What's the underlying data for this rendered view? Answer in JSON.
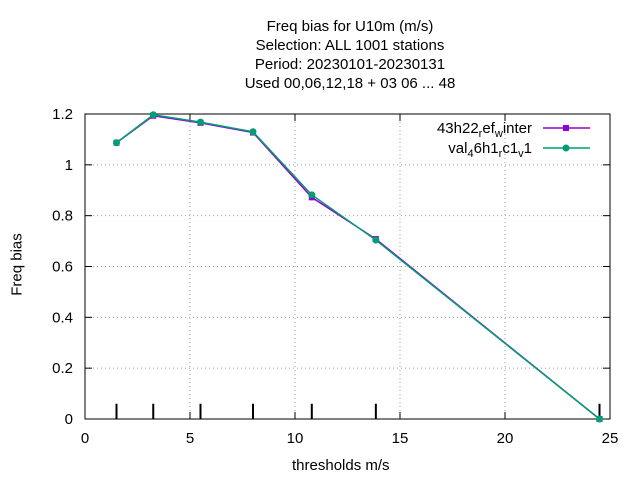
{
  "chart_data": {
    "type": "line",
    "title_lines": [
      "Freq bias  for U10m (m/s)",
      "Selection: ALL   1001 stations",
      "Period: 20230101-20230131",
      "Used  00,06,12,18  + 03 06 ... 48"
    ],
    "xlabel": "thresholds m/s",
    "ylabel": "Freq bias",
    "xlim": [
      0,
      25
    ],
    "ylim": [
      0,
      1.2
    ],
    "xticks": [
      "0",
      "5",
      "10",
      "15",
      "20",
      "25"
    ],
    "yticks": [
      "0",
      "0.2",
      "0.4",
      "0.6",
      "0.8",
      "1",
      "1.2"
    ],
    "grid": true,
    "legend_position": "top-right",
    "threshold_marks": [
      1.5,
      3.25,
      5.5,
      8.0,
      10.8,
      13.85,
      24.5
    ],
    "series": [
      {
        "legend_main": "43h22",
        "legend_parts": [
          {
            "text": "43h22",
            "sub": false
          },
          {
            "text": "r",
            "sub": true
          },
          {
            "text": "ef",
            "sub": false
          },
          {
            "text": "w",
            "sub": true
          },
          {
            "text": "inter",
            "sub": false
          }
        ],
        "color": "#9400d3",
        "x": [
          1.5,
          3.25,
          5.5,
          8.0,
          10.8,
          13.85,
          24.5
        ],
        "y": [
          1.087,
          1.193,
          1.165,
          1.127,
          0.872,
          0.708,
          0.0
        ]
      },
      {
        "legend_main": "val",
        "legend_parts": [
          {
            "text": "val",
            "sub": false
          },
          {
            "text": "4",
            "sub": true
          },
          {
            "text": "6h1",
            "sub": false
          },
          {
            "text": "r",
            "sub": true
          },
          {
            "text": "c1",
            "sub": false
          },
          {
            "text": "v",
            "sub": true
          },
          {
            "text": "1",
            "sub": false
          }
        ],
        "color": "#009e73",
        "x": [
          1.5,
          3.25,
          5.5,
          8.0,
          10.8,
          13.85,
          24.5
        ],
        "y": [
          1.087,
          1.197,
          1.168,
          1.13,
          0.882,
          0.704,
          0.0
        ]
      }
    ]
  }
}
